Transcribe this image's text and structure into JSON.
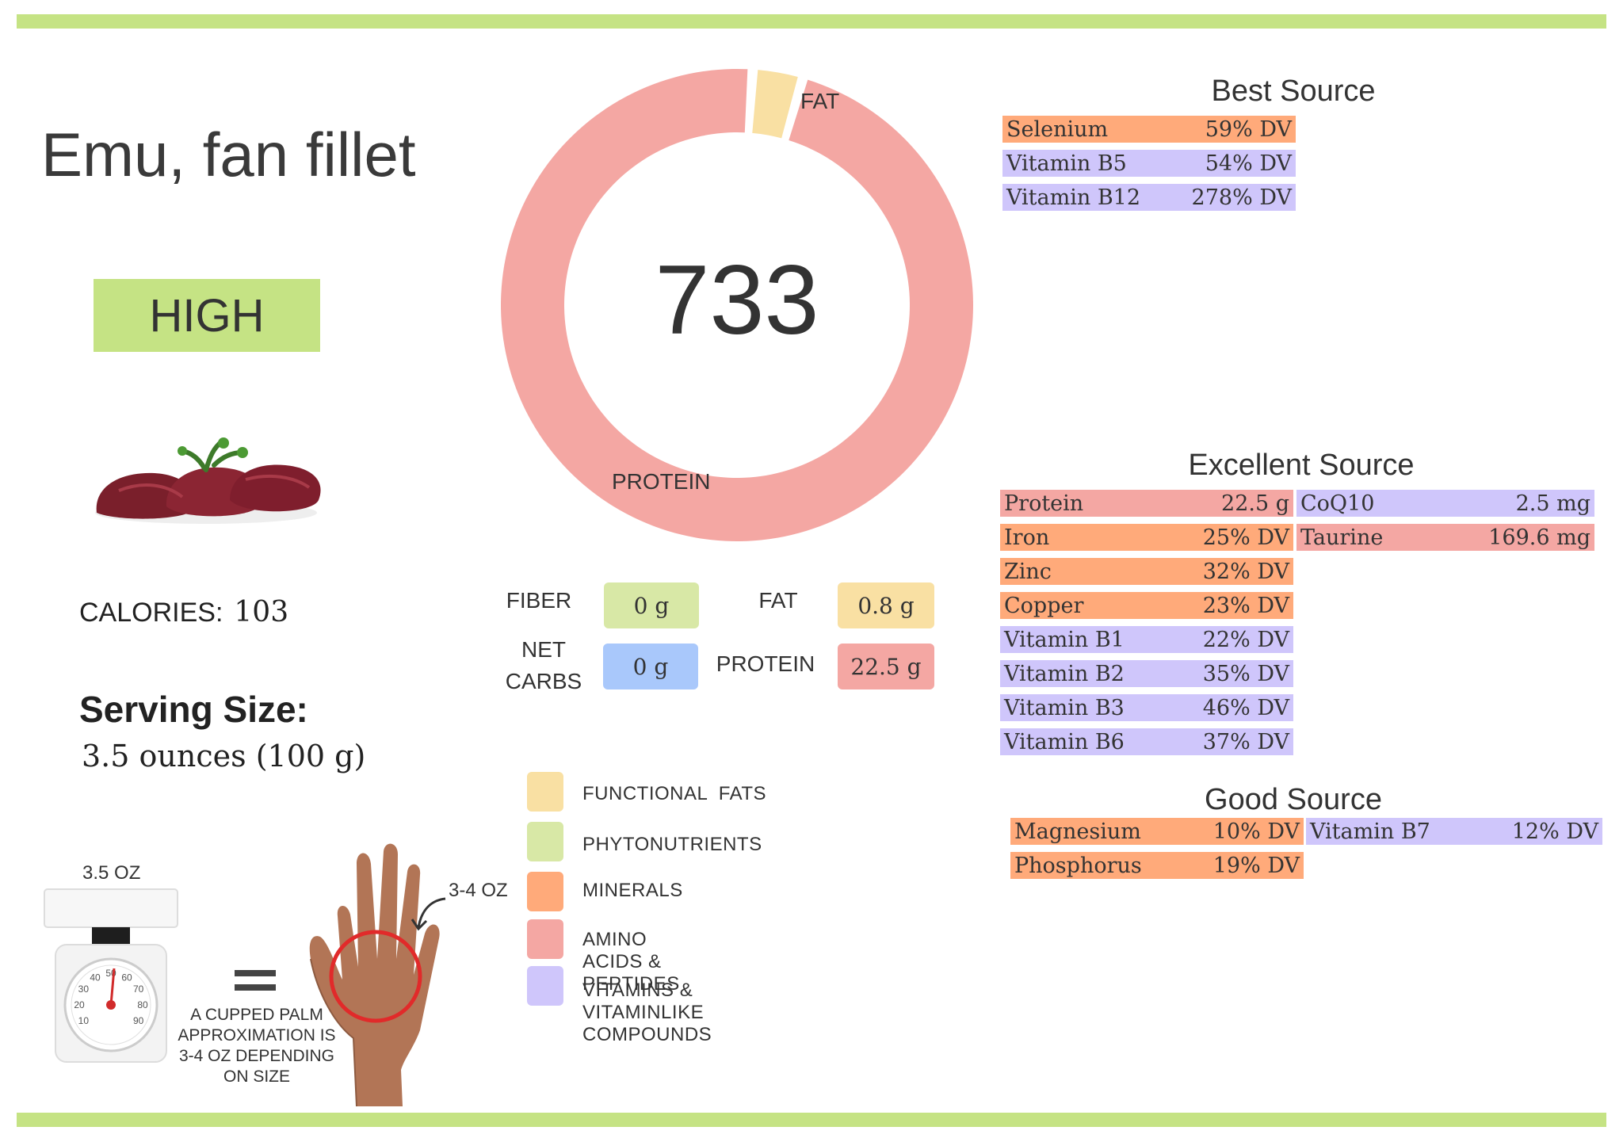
{
  "colors": {
    "accent_green": "#c5e384",
    "protein": "#f4a7a3",
    "fat": "#f9e0a3",
    "minerals": "#ffaa7a",
    "vitamins": "#cfc6fb",
    "phytonutrients": "#d8e8a6",
    "net_carbs": "#a9c8fb"
  },
  "food": {
    "name": "Emu, fan fillet",
    "level": "HIGH"
  },
  "calories": {
    "label": "CALORIES:",
    "value": "103"
  },
  "serving": {
    "label": "Serving Size:",
    "value": "3.5 ounces (100 g)"
  },
  "donut": {
    "center_value": "733",
    "segments": [
      {
        "label": "PROTEIN",
        "value": 22.5,
        "color": "#f4a7a3"
      },
      {
        "label": "FAT",
        "value": 0.8,
        "color": "#f9e0a3"
      }
    ]
  },
  "macros": {
    "fiber": {
      "label": "FIBER",
      "value": "0 g"
    },
    "fat": {
      "label": "FAT",
      "value": "0.8 g"
    },
    "net_carbs": {
      "label_line1": "NET",
      "label_line2": "CARBS",
      "value": "0 g"
    },
    "protein": {
      "label": "PROTEIN",
      "value": "22.5 g"
    }
  },
  "legend": [
    {
      "label": "FUNCTIONAL  FATS",
      "color": "#f9e0a3"
    },
    {
      "label": "PHYTONUTRIENTS",
      "color": "#d8e8a6"
    },
    {
      "label": "MINERALS",
      "color": "#ffaa7a"
    },
    {
      "label": "AMINO ACIDS & PEPTIDES",
      "color": "#f4a7a3"
    },
    {
      "label": "VITAMINS & VITAMINLIKE COMPOUNDS",
      "color": "#cfc6fb"
    }
  ],
  "serving_visual": {
    "scale_label": "3.5 OZ",
    "hand_label": "3-4 OZ",
    "note_lines": [
      "A CUPPED PALM",
      "APPROXIMATION IS",
      "3-4 OZ DEPENDING",
      "ON SIZE"
    ],
    "dial_numbers": [
      "10",
      "20",
      "30",
      "40",
      "50",
      "60",
      "70",
      "80",
      "90"
    ]
  },
  "best_source": {
    "title": "Best Source",
    "rows": [
      {
        "name": "Selenium",
        "value": "59% DV",
        "color": "#ffaa7a"
      },
      {
        "name": "Vitamin B5",
        "value": "54% DV",
        "color": "#cfc6fb"
      },
      {
        "name": "Vitamin B12",
        "value": "278% DV",
        "color": "#cfc6fb"
      }
    ]
  },
  "excellent_source": {
    "title": "Excellent Source",
    "left": [
      {
        "name": "Protein",
        "value": "22.5 g",
        "color": "#f4a7a3"
      },
      {
        "name": "Iron",
        "value": "25% DV",
        "color": "#ffaa7a"
      },
      {
        "name": "Zinc",
        "value": "32% DV",
        "color": "#ffaa7a"
      },
      {
        "name": "Copper",
        "value": "23% DV",
        "color": "#ffaa7a"
      },
      {
        "name": "Vitamin B1",
        "value": "22% DV",
        "color": "#cfc6fb"
      },
      {
        "name": "Vitamin B2",
        "value": "35% DV",
        "color": "#cfc6fb"
      },
      {
        "name": "Vitamin B3",
        "value": "46% DV",
        "color": "#cfc6fb"
      },
      {
        "name": "Vitamin B6",
        "value": "37% DV",
        "color": "#cfc6fb"
      }
    ],
    "right": [
      {
        "name": "CoQ10",
        "value": "2.5 mg",
        "color": "#cfc6fb"
      },
      {
        "name": "Taurine",
        "value": "169.6 mg",
        "color": "#f4a7a3"
      }
    ]
  },
  "good_source": {
    "title": "Good Source",
    "left": [
      {
        "name": "Magnesium",
        "value": "10% DV",
        "color": "#ffaa7a"
      },
      {
        "name": "Phosphorus",
        "value": "19% DV",
        "color": "#ffaa7a"
      }
    ],
    "right": [
      {
        "name": "Vitamin B7",
        "value": "12% DV",
        "color": "#cfc6fb"
      }
    ]
  }
}
